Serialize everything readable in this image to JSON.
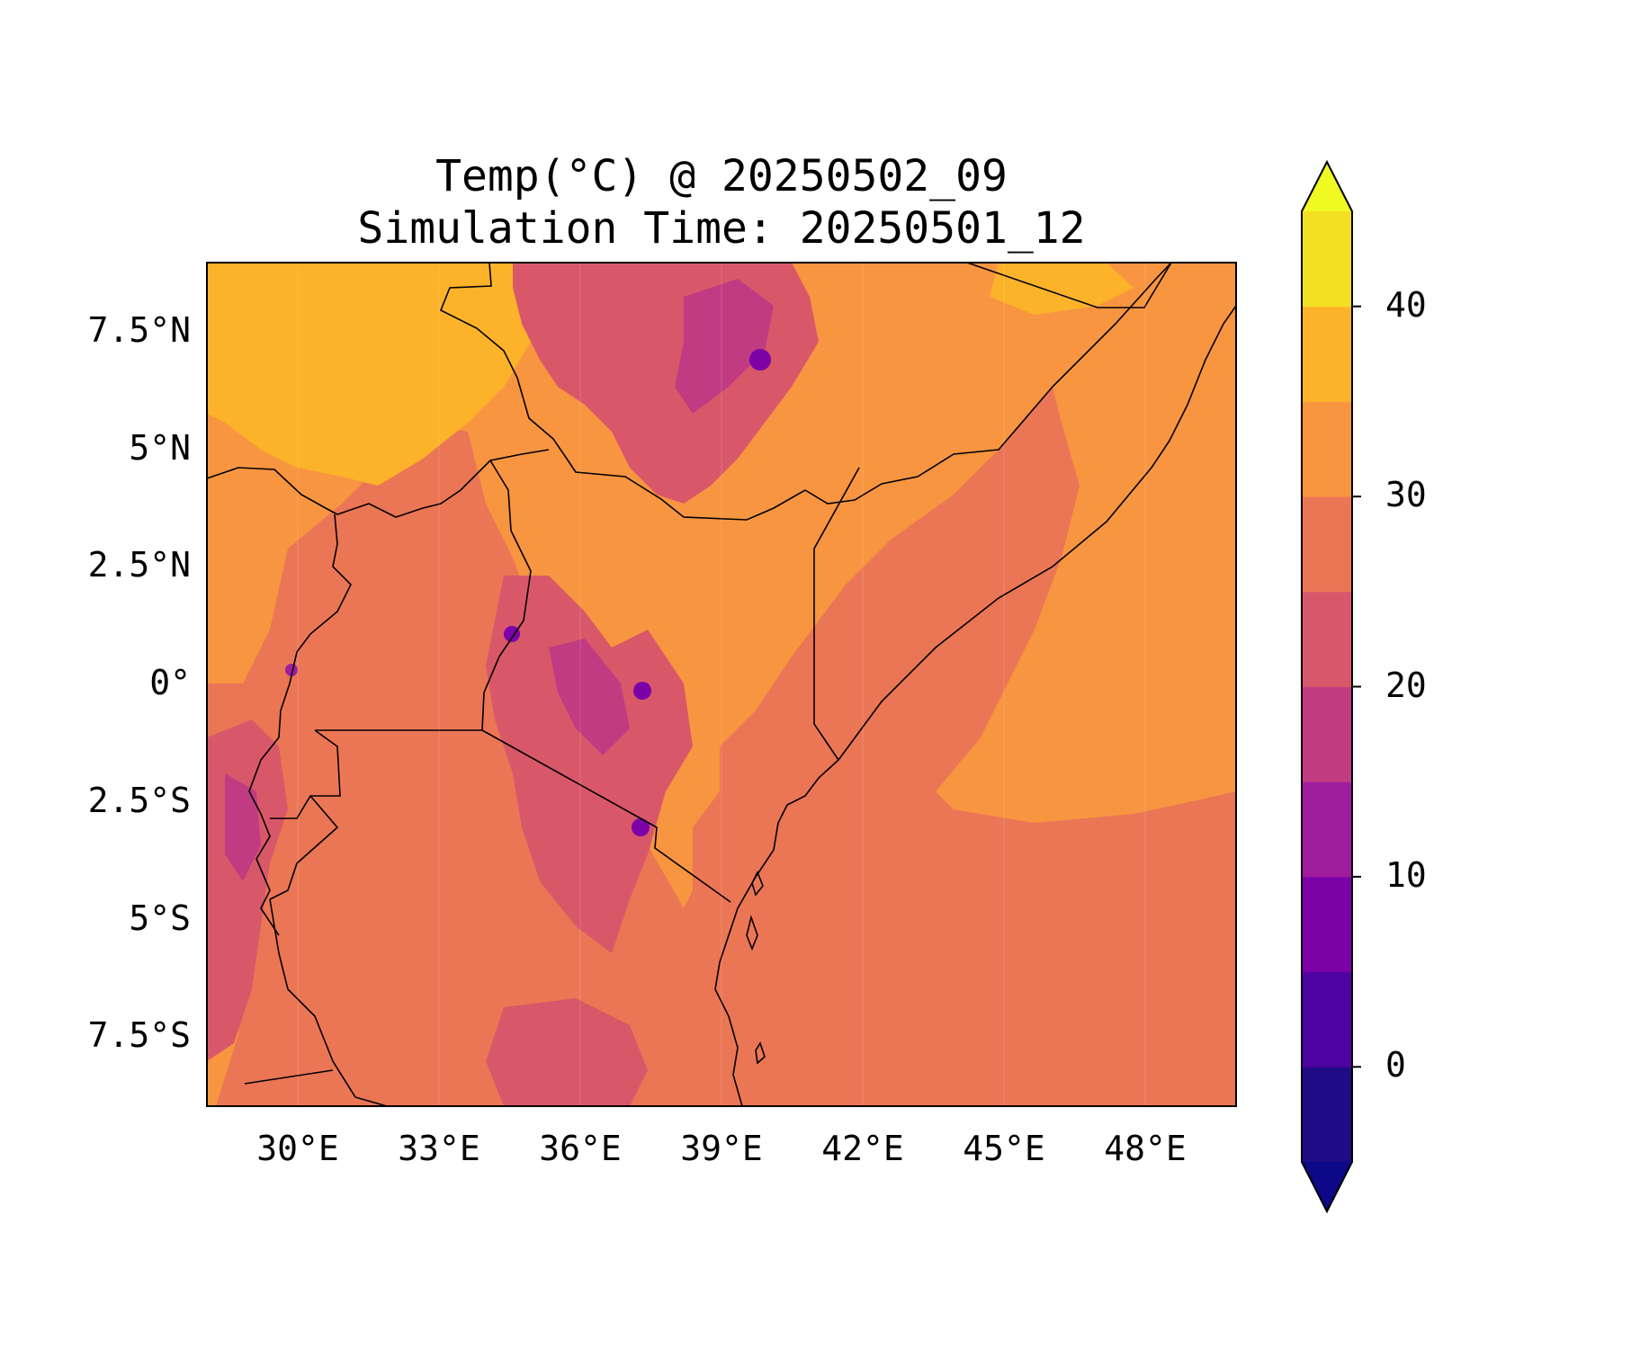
{
  "title": {
    "line1": "Temp(°C) @ 20250502_09",
    "line2": "Simulation Time: 20250501_12"
  },
  "map": {
    "lon_range": [
      27.7,
      49.6
    ],
    "lat_range": [
      -9.1,
      8.8
    ],
    "projection": "PlateCarree",
    "borders": "country boundaries and coastlines",
    "lat_ticks": [
      "7.5°N",
      "5°N",
      "2.5°N",
      "0°",
      "2.5°S",
      "5°S",
      "7.5°S"
    ],
    "lon_ticks": [
      "30°E",
      "33°E",
      "36°E",
      "39°E",
      "42°E",
      "45°E",
      "48°E"
    ]
  },
  "colorbar": {
    "orientation": "vertical",
    "extend": "both",
    "levels": [
      -5,
      0,
      5,
      10,
      15,
      20,
      25,
      30,
      35,
      40,
      45
    ],
    "tick_labels": [
      "0",
      "10",
      "20",
      "30",
      "40"
    ],
    "tick_values": [
      0,
      10,
      20,
      30,
      40
    ],
    "colors": [
      "#1f0c85",
      "#4e02a1",
      "#7c02a8",
      "#9f1c9d",
      "#c13b83",
      "#d8586a",
      "#eb7655",
      "#f89540",
      "#fcb32a",
      "#f2df24"
    ],
    "under_color": "#0d0887",
    "over_color": "#f0f921",
    "colormap": "plasma"
  }
}
